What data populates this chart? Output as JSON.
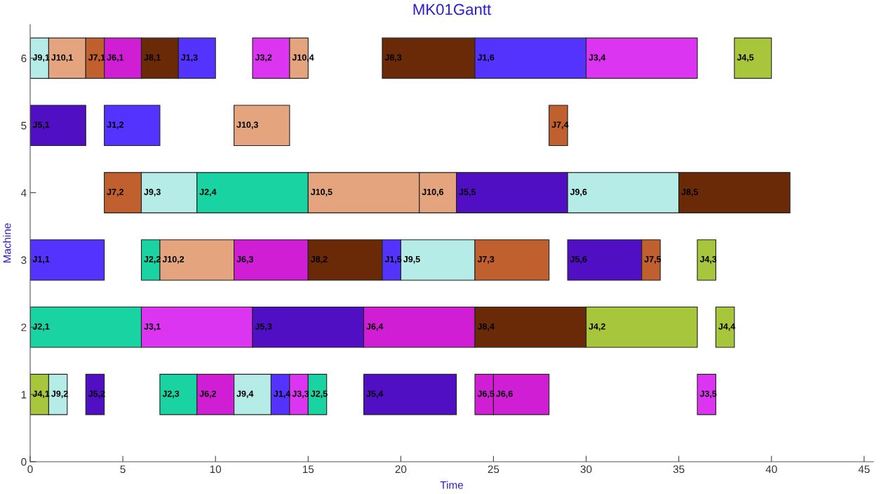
{
  "chart_data": {
    "type": "bar",
    "orientation": "horizontal",
    "title": "MK01Gantt",
    "xlabel": "Time",
    "ylabel": "Machine",
    "xlim": [
      0,
      45.5
    ],
    "xticks": [
      0,
      5,
      10,
      15,
      20,
      25,
      30,
      35,
      40,
      45
    ],
    "grid": false,
    "legend": false,
    "categories": [
      "6",
      "5",
      "4",
      "3",
      "2",
      "1",
      "0"
    ],
    "series": [
      {
        "base": [
          0,
          0,
          4,
          0,
          0,
          0,
          null
        ],
        "values": [
          1,
          3,
          2,
          4,
          6,
          1,
          null
        ],
        "colors": [
          "#b6ece8",
          "#500fc2",
          "#c0602e",
          "#5533ff",
          "#19d4a2",
          "#a8c63c",
          null
        ],
        "value_labels": [
          "J9,1",
          "J5,1",
          "J7,2",
          "J1,1",
          "J2,1",
          "J4,1",
          null
        ]
      },
      {
        "base": [
          1,
          4,
          6,
          6,
          6,
          1,
          null
        ],
        "values": [
          2,
          3,
          3,
          1,
          6,
          1,
          null
        ],
        "colors": [
          "#e3a47e",
          "#5533ff",
          "#b6ece8",
          "#19d4a2",
          "#dc35f2",
          "#b6ece8",
          null
        ],
        "value_labels": [
          "J10,1",
          "J1,2",
          "J9,3",
          "J2,2",
          "J3,1",
          "J9,2",
          null
        ]
      },
      {
        "base": [
          3,
          11,
          9,
          7,
          12,
          3,
          null
        ],
        "values": [
          1,
          3,
          6,
          4,
          6,
          1,
          null
        ],
        "colors": [
          "#c0602e",
          "#e3a47e",
          "#19d4a2",
          "#e3a47e",
          "#500fc2",
          "#500fc2",
          null
        ],
        "value_labels": [
          "J7,1",
          "J10,3",
          "J2,4",
          "J10,2",
          "J5,3",
          "J5,2",
          null
        ]
      },
      {
        "base": [
          4,
          28,
          15,
          11,
          18,
          7,
          null
        ],
        "values": [
          2,
          1,
          6,
          4,
          6,
          2,
          null
        ],
        "colors": [
          "#cf1ed4",
          "#c0602e",
          "#e3a47e",
          "#cf1ed4",
          "#cf1ed4",
          "#19d4a2",
          null
        ],
        "value_labels": [
          "J6,1",
          "J7,4",
          "J10,5",
          "J6,3",
          "J6,4",
          "J2,3",
          null
        ]
      },
      {
        "base": [
          6,
          null,
          21,
          15,
          24,
          9,
          null
        ],
        "values": [
          2,
          null,
          2,
          4,
          6,
          2,
          null
        ],
        "colors": [
          "#6a2a08",
          null,
          "#e3a47e",
          "#6a2a08",
          "#6a2a08",
          "#cf1ed4",
          null
        ],
        "value_labels": [
          "J8,1",
          null,
          "J10,6",
          "J8,2",
          "J8,4",
          "J6,2",
          null
        ]
      },
      {
        "base": [
          8,
          null,
          23,
          19,
          30,
          11,
          null
        ],
        "values": [
          2,
          null,
          6,
          1,
          6,
          2,
          null
        ],
        "colors": [
          "#5533ff",
          null,
          "#500fc2",
          "#5533ff",
          "#a8c63c",
          "#b6ece8",
          null
        ],
        "value_labels": [
          "J1,3",
          null,
          "J5,5",
          "J1,5",
          "J4,2",
          "J9,4",
          null
        ]
      },
      {
        "base": [
          12,
          null,
          29,
          20,
          37,
          13,
          null
        ],
        "values": [
          2,
          null,
          6,
          4,
          1,
          1,
          null
        ],
        "colors": [
          "#dc35f2",
          null,
          "#b6ece8",
          "#b6ece8",
          "#a8c63c",
          "#5533ff",
          null
        ],
        "value_labels": [
          "J3,2",
          null,
          "J9,6",
          "J9,5",
          "J4,4",
          "J1,4",
          null
        ]
      },
      {
        "base": [
          14,
          null,
          35,
          24,
          null,
          14,
          null
        ],
        "values": [
          1,
          null,
          6,
          4,
          null,
          1,
          null
        ],
        "colors": [
          "#e3a47e",
          null,
          "#6a2a08",
          "#c0602e",
          null,
          "#dc35f2",
          null
        ],
        "value_labels": [
          "J10,4",
          null,
          "J8,5",
          "J7,3",
          null,
          "J3,3",
          null
        ]
      },
      {
        "base": [
          19,
          null,
          null,
          29,
          null,
          15,
          null
        ],
        "values": [
          5,
          null,
          null,
          4,
          null,
          1,
          null
        ],
        "colors": [
          "#6a2a08",
          null,
          null,
          "#500fc2",
          null,
          "#19d4a2",
          null
        ],
        "value_labels": [
          "J8,3",
          null,
          null,
          "J5,6",
          null,
          "J2,5",
          null
        ]
      },
      {
        "base": [
          24,
          null,
          null,
          33,
          null,
          18,
          null
        ],
        "values": [
          6,
          null,
          null,
          1,
          null,
          5,
          null
        ],
        "colors": [
          "#5533ff",
          null,
          null,
          "#c0602e",
          null,
          "#500fc2",
          null
        ],
        "value_labels": [
          "J1,6",
          null,
          null,
          "J7,5",
          null,
          "J5,4",
          null
        ]
      },
      {
        "base": [
          30,
          null,
          null,
          36,
          null,
          24,
          null
        ],
        "values": [
          6,
          null,
          null,
          1,
          null,
          1,
          null
        ],
        "colors": [
          "#dc35f2",
          null,
          null,
          "#a8c63c",
          null,
          "#cf1ed4",
          null
        ],
        "value_labels": [
          "J3,4",
          null,
          null,
          "J4,3",
          null,
          "J6,5",
          null
        ]
      },
      {
        "base": [
          38,
          null,
          null,
          null,
          null,
          25,
          null
        ],
        "values": [
          2,
          null,
          null,
          null,
          null,
          3,
          null
        ],
        "colors": [
          "#a8c63c",
          null,
          null,
          null,
          null,
          "#cf1ed4",
          null
        ],
        "value_labels": [
          "J4,5",
          null,
          null,
          null,
          null,
          "J6,6",
          null
        ]
      },
      {
        "base": [
          null,
          null,
          null,
          null,
          null,
          36,
          null
        ],
        "values": [
          null,
          null,
          null,
          null,
          null,
          1,
          null
        ],
        "colors": [
          null,
          null,
          null,
          null,
          null,
          "#dc35f2",
          null
        ],
        "value_labels": [
          null,
          null,
          null,
          null,
          null,
          "J3,5",
          null
        ]
      }
    ]
  }
}
